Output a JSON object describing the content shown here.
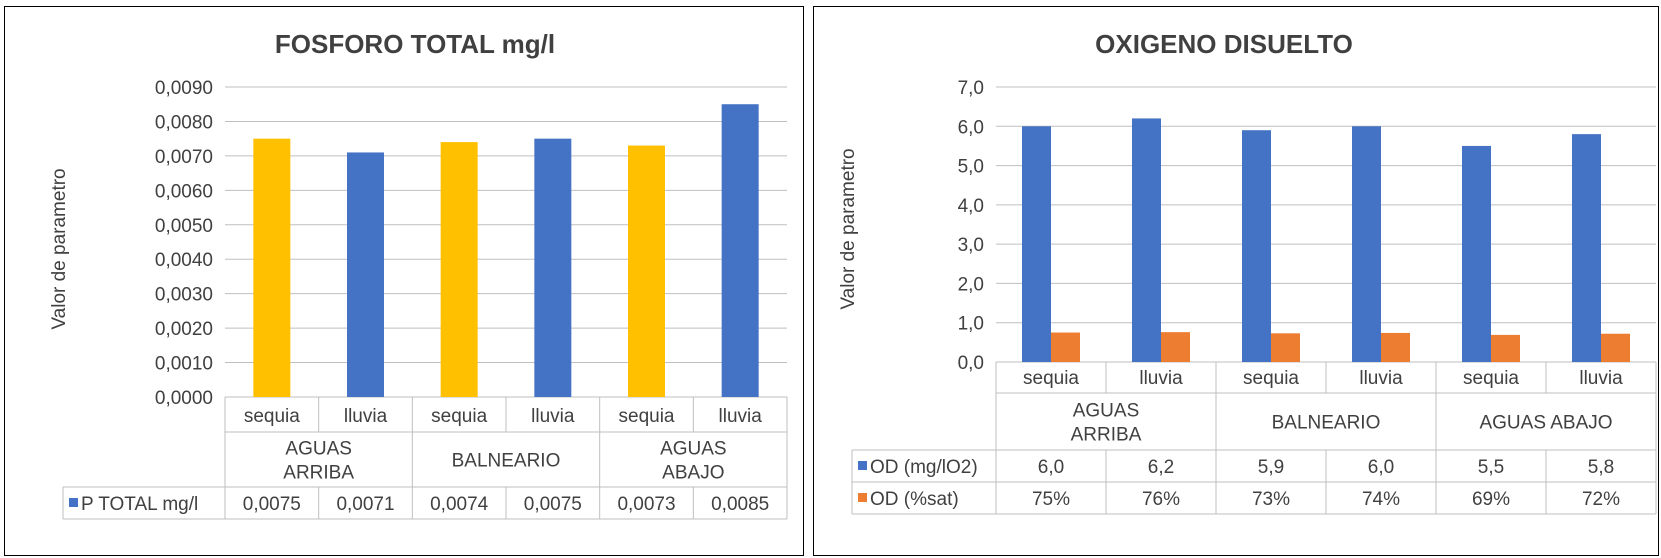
{
  "chart_data": [
    {
      "type": "bar",
      "title": "FOSFORO TOTAL mg/l",
      "ylabel": "Valor de parametro",
      "ylim": [
        0,
        0.009
      ],
      "yticks": [
        "0,0000",
        "0,0010",
        "0,0020",
        "0,0030",
        "0,0040",
        "0,0050",
        "0,0060",
        "0,0070",
        "0,0080",
        "0,0090"
      ],
      "groups": [
        {
          "label": [
            "AGUAS",
            "ARRIBA"
          ]
        },
        {
          "label": [
            "BALNEARIO"
          ]
        },
        {
          "label": [
            "AGUAS",
            "ABAJO"
          ]
        }
      ],
      "subcategories": [
        "sequia",
        "lluvia",
        "sequia",
        "lluvia",
        "sequia",
        "lluvia"
      ],
      "series": [
        {
          "name": "P TOTAL mg/l",
          "values": [
            0.0075,
            0.0071,
            0.0074,
            0.0075,
            0.0073,
            0.0085
          ],
          "labels": [
            "0,0075",
            "0,0071",
            "0,0074",
            "0,0075",
            "0,0073",
            "0,0085"
          ]
        }
      ],
      "bar_colors": [
        "#FFC000",
        "#4472C4",
        "#FFC000",
        "#4472C4",
        "#FFC000",
        "#4472C4"
      ],
      "legend_color": "#4472C4",
      "grid": true,
      "legend": "data-table"
    },
    {
      "type": "bar",
      "title": "OXIGENO DISUELTO",
      "ylabel": "Valor de parametro",
      "ylim": [
        0,
        7
      ],
      "yticks": [
        "0,0",
        "1,0",
        "2,0",
        "3,0",
        "4,0",
        "5,0",
        "6,0",
        "7,0"
      ],
      "groups": [
        {
          "label": [
            "AGUAS",
            "ARRIBA"
          ]
        },
        {
          "label": [
            "BALNEARIO"
          ]
        },
        {
          "label": [
            "AGUAS ABAJO"
          ]
        }
      ],
      "subcategories": [
        "sequia",
        "lluvia",
        "sequia",
        "lluvia",
        "sequia",
        "lluvia"
      ],
      "series": [
        {
          "name": "OD (mg/lO2)",
          "color": "#4472C4",
          "values": [
            6.0,
            6.2,
            5.9,
            6.0,
            5.5,
            5.8
          ],
          "labels": [
            "6,0",
            "6,2",
            "5,9",
            "6,0",
            "5,5",
            "5,8"
          ]
        },
        {
          "name": "OD (%sat)",
          "color": "#ED7D31",
          "values": [
            0.75,
            0.76,
            0.73,
            0.74,
            0.69,
            0.72
          ],
          "labels": [
            "75%",
            "76%",
            "73%",
            "74%",
            "69%",
            "72%"
          ]
        }
      ],
      "grid": true,
      "legend": "data-table"
    }
  ]
}
